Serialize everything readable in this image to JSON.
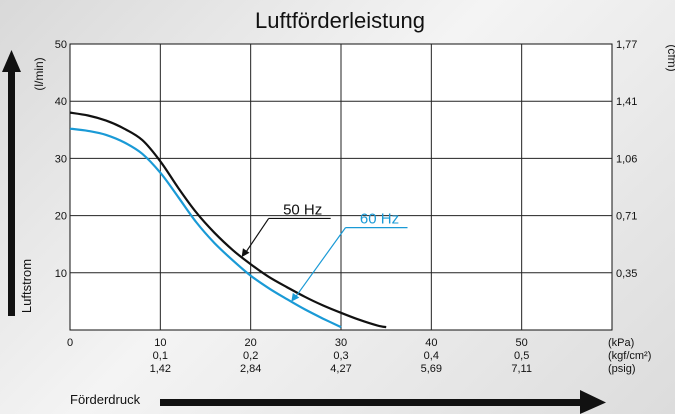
{
  "chart_data": {
    "type": "line",
    "title": "Luftförderleistung",
    "xlabel": "Förderdruck",
    "ylabel": "Luftstrom",
    "y_unit_left": "(l/min)",
    "y_unit_right": "(cfm)",
    "xlim": [
      0,
      60
    ],
    "ylim": [
      0,
      50
    ],
    "grid": true,
    "x_ticks": [
      0,
      10,
      20,
      30,
      40,
      50
    ],
    "x_tick_labels_kpa": [
      "0",
      "10",
      "20",
      "30",
      "40",
      "50"
    ],
    "x_tick_labels_kgf": [
      "",
      "0,1",
      "0,2",
      "0,3",
      "0,4",
      "0,5"
    ],
    "x_tick_labels_psig": [
      "",
      "1,42",
      "2,84",
      "4,27",
      "5,69",
      "7,11"
    ],
    "x_unit_labels": [
      "(kPa)",
      "(kgf/cm²)",
      "(psig)"
    ],
    "y_ticks": [
      0,
      10,
      20,
      30,
      40,
      50
    ],
    "y_tick_labels": [
      "",
      "10",
      "20",
      "30",
      "40",
      "50"
    ],
    "y_right_ticks": [
      10,
      20,
      30,
      40,
      50
    ],
    "y_right_tick_labels": [
      "0,35",
      "0,71",
      "1,06",
      "1,41",
      "1,77"
    ],
    "series": [
      {
        "name": "50 Hz",
        "color": "#111111",
        "x": [
          0,
          2,
          4,
          6,
          8,
          10,
          12,
          14,
          16,
          18,
          20,
          22,
          24,
          26,
          28,
          30,
          32,
          34,
          35
        ],
        "y": [
          38,
          37.5,
          36.6,
          35.2,
          33.2,
          29.5,
          24.8,
          20.5,
          17,
          14,
          11.5,
          9.3,
          7.5,
          5.8,
          4.3,
          3,
          1.8,
          0.8,
          0.5
        ]
      },
      {
        "name": "60 Hz",
        "color": "#1a9ad6",
        "x": [
          0,
          2,
          4,
          6,
          8,
          10,
          12,
          14,
          16,
          18,
          20,
          22,
          24,
          26,
          28,
          30
        ],
        "y": [
          35.2,
          34.8,
          34.1,
          32.8,
          30.8,
          27.5,
          23.2,
          18.8,
          15.2,
          12.2,
          9.5,
          7.3,
          5.4,
          3.6,
          2,
          0.5
        ]
      }
    ]
  }
}
